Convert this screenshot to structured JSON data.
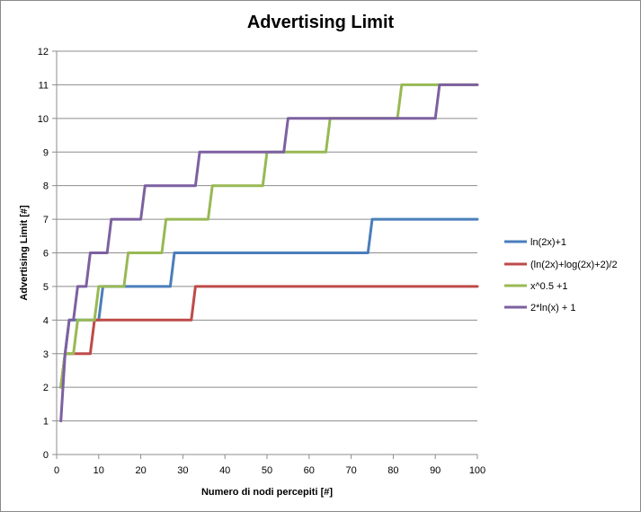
{
  "chart_data": {
    "type": "line",
    "title": "Advertising Limit",
    "xlabel": "Numero di nodi percepiti [#]",
    "ylabel": "Advertising Limit [#]",
    "xlim": [
      0,
      100
    ],
    "ylim": [
      0,
      12
    ],
    "x_ticks": [
      0,
      10,
      20,
      30,
      40,
      50,
      60,
      70,
      80,
      90,
      100
    ],
    "y_ticks": [
      0,
      1,
      2,
      3,
      4,
      5,
      6,
      7,
      8,
      9,
      10,
      11,
      12
    ],
    "grid": "horizontal",
    "legend_position": "right",
    "series": [
      {
        "name": "ln(2x)+1",
        "color": "#4a7ebb",
        "points": [
          [
            1,
            2
          ],
          [
            2,
            3
          ],
          [
            3,
            4
          ],
          [
            4,
            4
          ],
          [
            10,
            4
          ],
          [
            11,
            5
          ],
          [
            27,
            5
          ],
          [
            28,
            6
          ],
          [
            74,
            6
          ],
          [
            75,
            7
          ],
          [
            100,
            7
          ]
        ]
      },
      {
        "name": "(ln(2x)+log(2x)+2)/2",
        "color": "#be4b48",
        "points": [
          [
            1,
            2
          ],
          [
            2,
            3
          ],
          [
            8,
            3
          ],
          [
            9,
            4
          ],
          [
            32,
            4
          ],
          [
            33,
            5
          ],
          [
            100,
            5
          ]
        ]
      },
      {
        "name": "x^0.5 +1",
        "color": "#98b954",
        "points": [
          [
            1,
            2
          ],
          [
            2,
            3
          ],
          [
            4,
            3
          ],
          [
            5,
            4
          ],
          [
            9,
            4
          ],
          [
            10,
            5
          ],
          [
            16,
            5
          ],
          [
            17,
            6
          ],
          [
            25,
            6
          ],
          [
            26,
            7
          ],
          [
            36,
            7
          ],
          [
            37,
            8
          ],
          [
            49,
            8
          ],
          [
            50,
            9
          ],
          [
            64,
            9
          ],
          [
            65,
            10
          ],
          [
            81,
            10
          ],
          [
            82,
            11
          ],
          [
            100,
            11
          ]
        ]
      },
      {
        "name": "2*ln(x) + 1",
        "color": "#7d60a0",
        "points": [
          [
            1,
            1
          ],
          [
            2,
            3
          ],
          [
            3,
            4
          ],
          [
            4,
            4
          ],
          [
            5,
            5
          ],
          [
            7,
            5
          ],
          [
            8,
            6
          ],
          [
            12,
            6
          ],
          [
            13,
            7
          ],
          [
            20,
            7
          ],
          [
            21,
            8
          ],
          [
            33,
            8
          ],
          [
            34,
            9
          ],
          [
            54,
            9
          ],
          [
            55,
            10
          ],
          [
            90,
            10
          ],
          [
            91,
            11
          ],
          [
            100,
            11
          ]
        ]
      }
    ]
  }
}
